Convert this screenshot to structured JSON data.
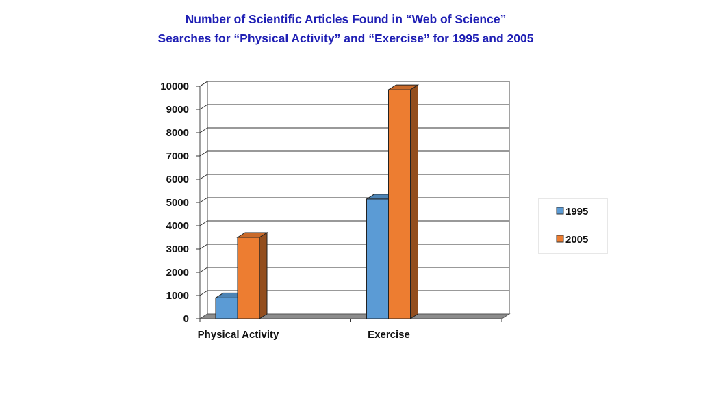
{
  "title_lines": [
    "Number of Scientific Articles Found in “Web of Science”",
    "Searches for “Physical Activity” and “Exercise” for 1995 and 2005"
  ],
  "chart_data": {
    "type": "bar",
    "title": "Number of Scientific Articles Found in “Web of Science” Searches for “Physical Activity” and “Exercise” for 1995 and 2005",
    "categories": [
      "Physical Activity",
      "Exercise"
    ],
    "series": [
      {
        "name": "1995",
        "values": [
          900,
          5150
        ],
        "color": "#5b9bd5"
      },
      {
        "name": "2005",
        "values": [
          3500,
          9850
        ],
        "color": "#ed7d31"
      }
    ],
    "ylim": [
      0,
      10000
    ],
    "yticks": [
      "0",
      "1000",
      "2000",
      "3000",
      "4000",
      "5000",
      "6000",
      "7000",
      "8000",
      "9000",
      "10000"
    ],
    "xlabel": "",
    "ylabel": "",
    "grid": true,
    "legend": "right",
    "style": "3d-clustered-column"
  }
}
